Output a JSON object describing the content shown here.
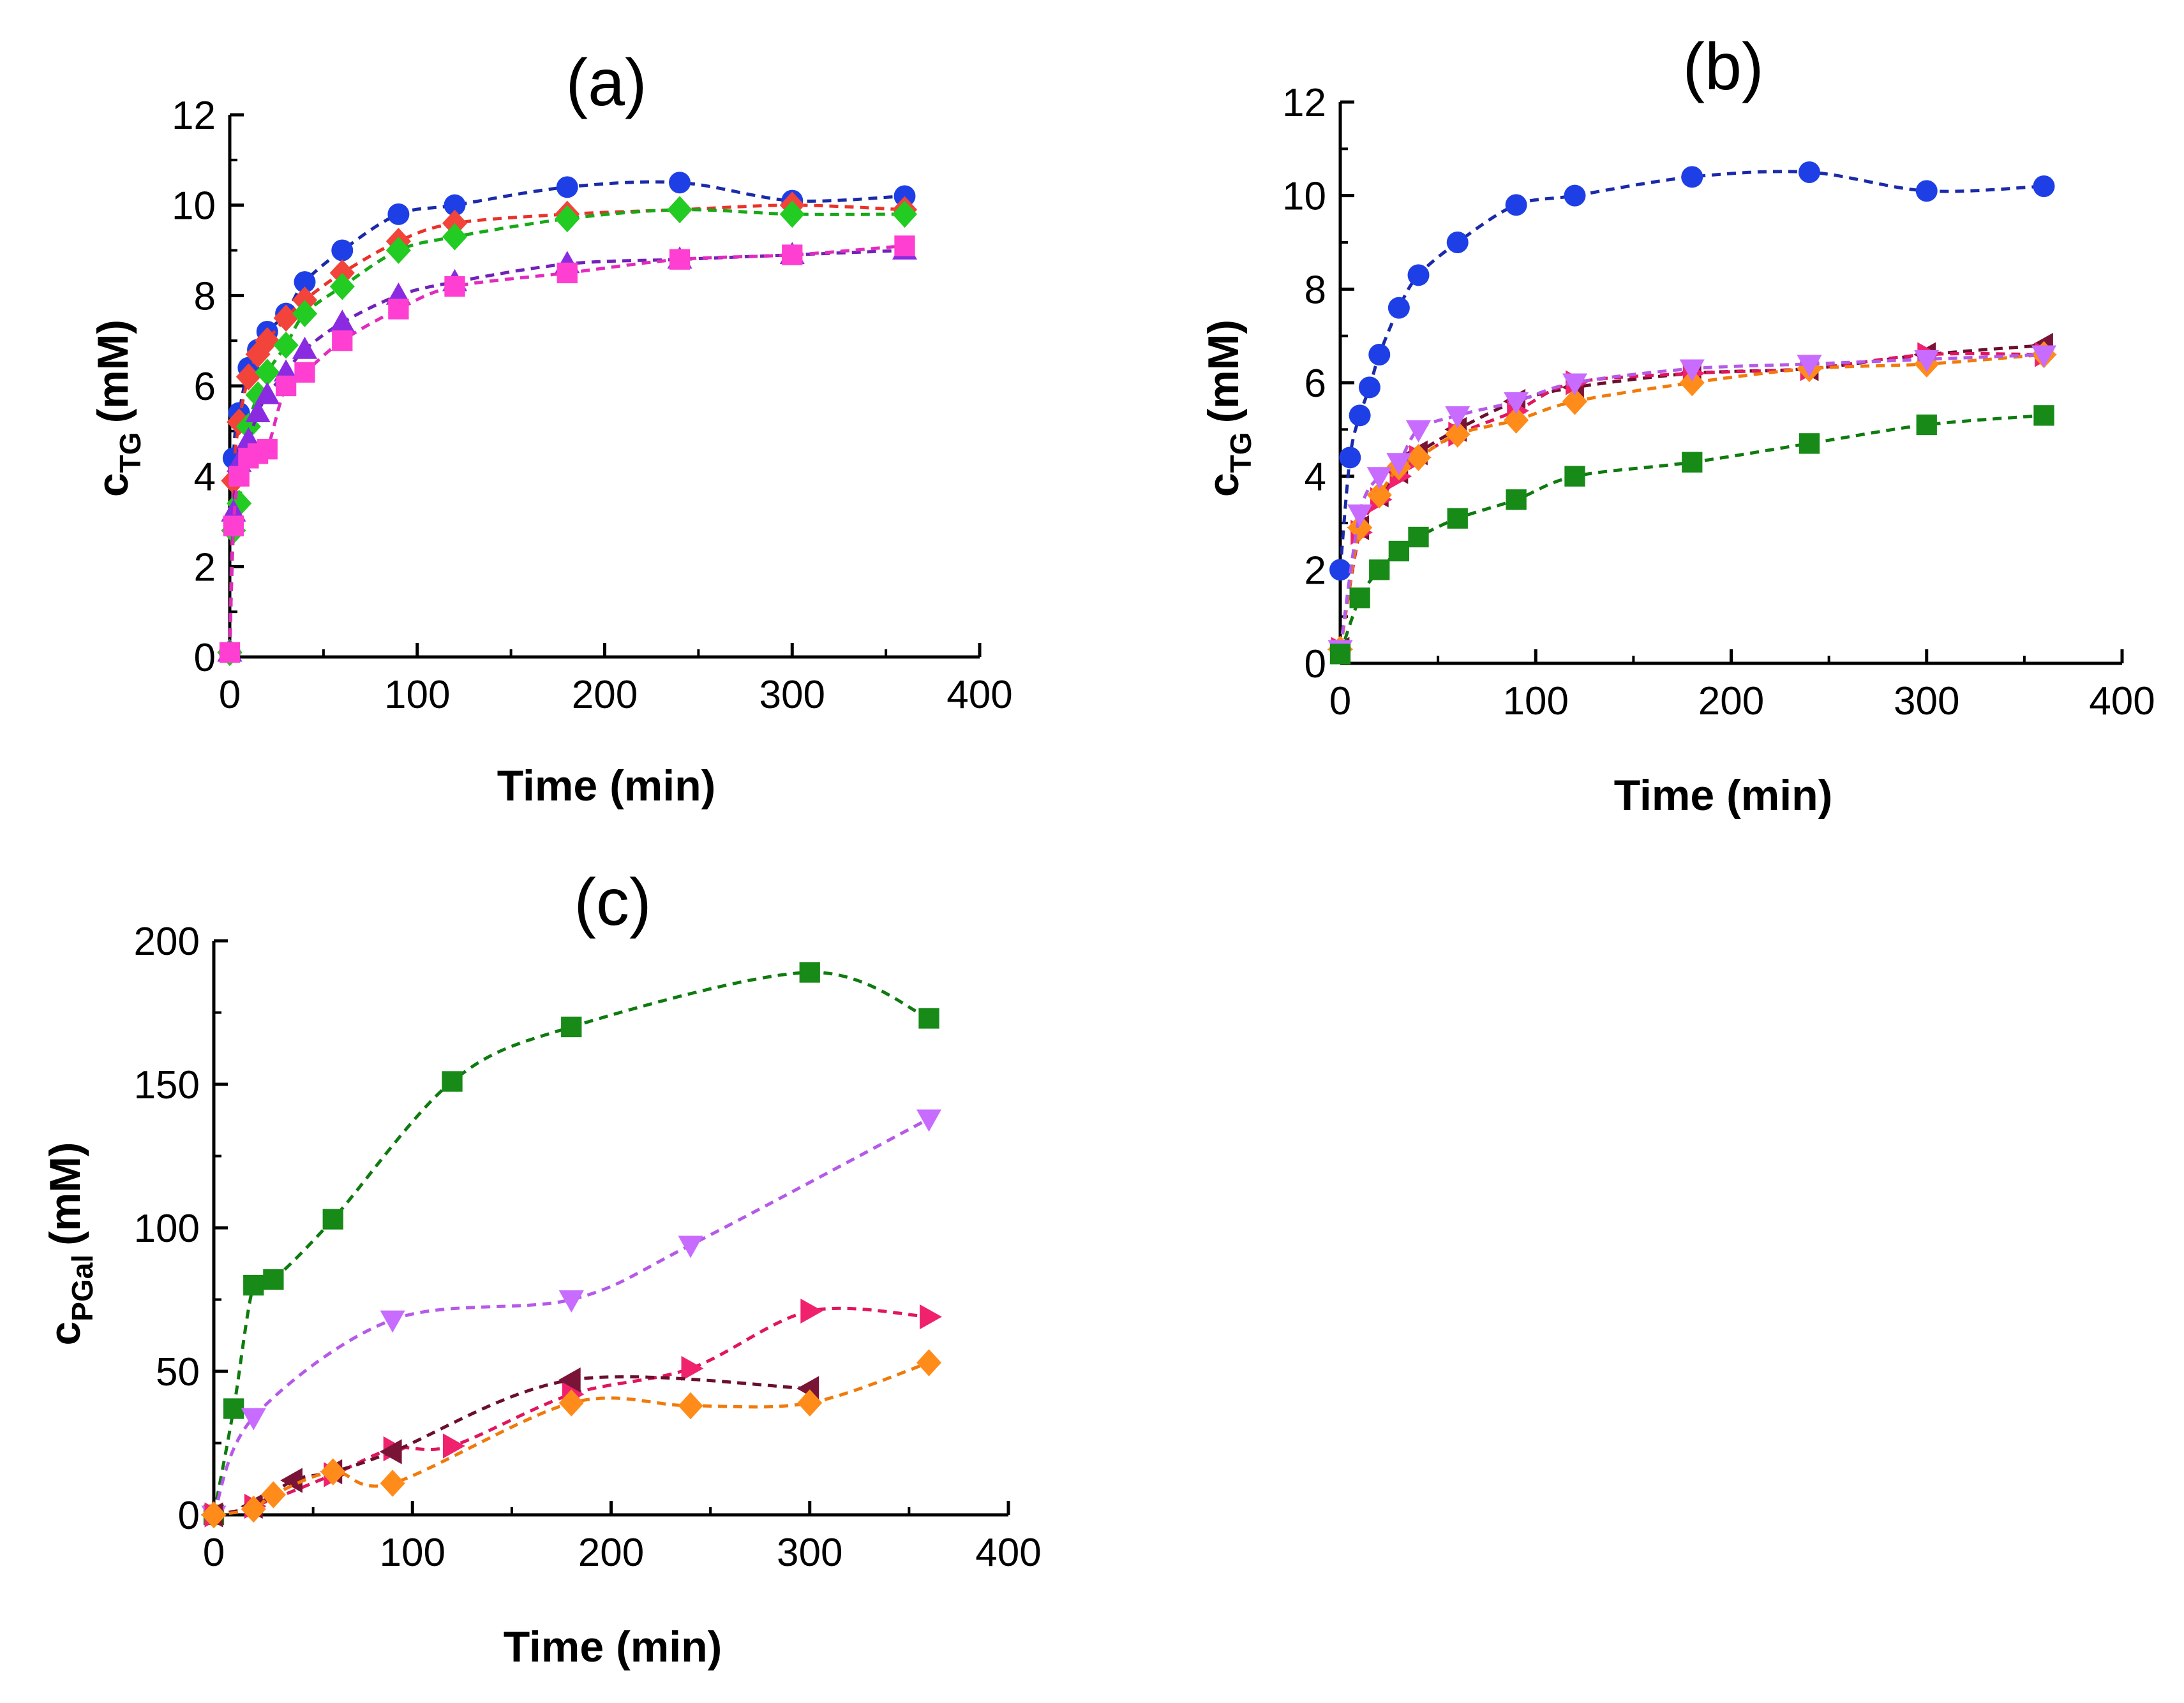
{
  "chart_data": [
    {
      "id": "a",
      "type": "line",
      "title": "(a)",
      "xlabel": "Time (min)",
      "ylabel_main": "c",
      "ylabel_sub": "TG",
      "ylabel_unit": "(mM)",
      "xlim": [
        0,
        400
      ],
      "ylim": [
        0,
        12
      ],
      "xticks": [
        0,
        100,
        200,
        300,
        400
      ],
      "yticks": [
        0,
        2,
        4,
        6,
        8,
        10,
        12
      ],
      "series": [
        {
          "name": "blue circles",
          "marker": "circle",
          "color": "#1f3fe6",
          "line_color": "#1a2aa8",
          "x": [
            0,
            2,
            5,
            10,
            15,
            20,
            30,
            40,
            60,
            90,
            120,
            180,
            240,
            300,
            360
          ],
          "y": [
            0.1,
            4.4,
            5.4,
            6.4,
            6.8,
            7.2,
            7.6,
            8.3,
            9.0,
            9.8,
            10.0,
            10.4,
            10.5,
            10.1,
            10.2
          ]
        },
        {
          "name": "red diamonds",
          "marker": "diamond",
          "color": "#f2443a",
          "line_color": "#e8322a",
          "x": [
            0,
            2,
            5,
            10,
            15,
            20,
            30,
            40,
            60,
            90,
            120,
            180,
            240,
            300,
            360
          ],
          "y": [
            0.1,
            3.9,
            5.2,
            6.2,
            6.7,
            7.0,
            7.5,
            7.9,
            8.5,
            9.2,
            9.6,
            9.8,
            9.9,
            10.0,
            9.9
          ]
        },
        {
          "name": "green diamonds",
          "marker": "diamond",
          "color": "#22cc22",
          "line_color": "#17a817",
          "x": [
            0,
            2,
            5,
            10,
            15,
            20,
            30,
            40,
            60,
            90,
            120,
            180,
            240,
            300,
            360
          ],
          "y": [
            0.1,
            2.8,
            3.4,
            5.1,
            5.8,
            6.3,
            6.9,
            7.6,
            8.2,
            9.0,
            9.3,
            9.7,
            9.9,
            9.8,
            9.8
          ]
        },
        {
          "name": "purple triangles",
          "marker": "triangle-up",
          "color": "#8a2be2",
          "line_color": "#7022b8",
          "x": [
            0,
            2,
            5,
            10,
            15,
            20,
            30,
            40,
            60,
            90,
            120,
            180,
            240,
            300,
            360
          ],
          "y": [
            0.1,
            3.2,
            4.3,
            4.8,
            5.4,
            5.8,
            6.3,
            6.8,
            7.4,
            8.0,
            8.3,
            8.7,
            8.8,
            8.9,
            9.0
          ]
        },
        {
          "name": "magenta squares",
          "marker": "square",
          "color": "#ff3fd2",
          "line_color": "#e22bbd",
          "x": [
            0,
            2,
            5,
            10,
            15,
            20,
            30,
            40,
            60,
            90,
            120,
            180,
            240,
            300,
            360
          ],
          "y": [
            0.1,
            2.9,
            4.0,
            4.4,
            4.5,
            4.6,
            6.0,
            6.3,
            7.0,
            7.7,
            8.2,
            8.5,
            8.8,
            8.9,
            9.1
          ]
        }
      ]
    },
    {
      "id": "b",
      "type": "line",
      "title": "(b)",
      "xlabel": "Time (min)",
      "ylabel_main": "c",
      "ylabel_sub": "TG",
      "ylabel_unit": "(mM)",
      "xlim": [
        0,
        400
      ],
      "ylim": [
        0,
        12
      ],
      "xticks": [
        0,
        100,
        200,
        300,
        400
      ],
      "yticks": [
        0,
        2,
        4,
        6,
        8,
        10,
        12
      ],
      "series": [
        {
          "name": "blue circles",
          "marker": "circle",
          "color": "#1f3fe6",
          "line_color": "#1a2aa8",
          "x": [
            0,
            5,
            10,
            15,
            20,
            30,
            40,
            60,
            90,
            120,
            180,
            240,
            300,
            360
          ],
          "y": [
            2.0,
            4.4,
            5.3,
            5.9,
            6.6,
            7.6,
            8.3,
            9.0,
            9.8,
            10.0,
            10.4,
            10.5,
            10.1,
            10.2
          ]
        },
        {
          "name": "dark red left triangles",
          "marker": "triangle-left",
          "color": "#7a1436",
          "line_color": "#6a0f2e",
          "x": [
            0,
            10,
            20,
            30,
            40,
            60,
            90,
            120,
            180,
            240,
            300,
            360
          ],
          "y": [
            0.3,
            2.9,
            3.6,
            4.1,
            4.5,
            5.0,
            5.6,
            5.9,
            6.2,
            6.3,
            6.6,
            6.8
          ]
        },
        {
          "name": "pink right triangles",
          "marker": "triangle-right",
          "color": "#f0226e",
          "line_color": "#e0155e",
          "x": [
            0,
            10,
            20,
            30,
            40,
            60,
            90,
            120,
            180,
            240,
            300,
            360
          ],
          "y": [
            0.3,
            2.8,
            3.5,
            4.0,
            4.4,
            4.9,
            5.4,
            6.0,
            6.2,
            6.3,
            6.6,
            6.6
          ]
        },
        {
          "name": "orange diamonds",
          "marker": "diamond",
          "color": "#ff8c1a",
          "line_color": "#f07a0a",
          "x": [
            0,
            10,
            20,
            30,
            40,
            60,
            90,
            120,
            180,
            240,
            300,
            360
          ],
          "y": [
            0.3,
            2.9,
            3.6,
            4.2,
            4.4,
            4.9,
            5.2,
            5.6,
            6.0,
            6.3,
            6.4,
            6.6
          ]
        },
        {
          "name": "violet down triangles",
          "marker": "triangle-down",
          "color": "#c86bff",
          "line_color": "#b55ae8",
          "x": [
            0,
            10,
            20,
            30,
            40,
            60,
            90,
            120,
            180,
            240,
            300,
            360
          ],
          "y": [
            0.3,
            3.2,
            4.0,
            4.3,
            5.0,
            5.3,
            5.6,
            6.0,
            6.3,
            6.4,
            6.5,
            6.6
          ]
        },
        {
          "name": "green squares",
          "marker": "square",
          "color": "#178a17",
          "line_color": "#0f7a0f",
          "x": [
            0,
            10,
            20,
            30,
            40,
            60,
            90,
            120,
            180,
            240,
            300,
            360
          ],
          "y": [
            0.2,
            1.4,
            2.0,
            2.4,
            2.7,
            3.1,
            3.5,
            4.0,
            4.3,
            4.7,
            5.1,
            5.3
          ]
        }
      ]
    },
    {
      "id": "c",
      "type": "line",
      "title": "(c)",
      "xlabel": "Time (min)",
      "ylabel_main": "c",
      "ylabel_sub": "PGal",
      "ylabel_unit": "(mM)",
      "xlim": [
        0,
        400
      ],
      "ylim": [
        0,
        200
      ],
      "xticks": [
        0,
        100,
        200,
        300,
        400
      ],
      "yticks": [
        0,
        50,
        100,
        150,
        200
      ],
      "series": [
        {
          "name": "green squares",
          "marker": "square",
          "color": "#178a17",
          "line_color": "#0f7a0f",
          "x": [
            0,
            10,
            20,
            30,
            60,
            120,
            180,
            300,
            360
          ],
          "y": [
            0,
            37,
            80,
            82,
            103,
            151,
            170,
            189,
            173
          ]
        },
        {
          "name": "violet down triangles",
          "marker": "triangle-down",
          "color": "#c86bff",
          "line_color": "#b55ae8",
          "x": [
            0,
            20,
            90,
            180,
            240,
            360
          ],
          "y": [
            0,
            34,
            68,
            75,
            94,
            138
          ]
        },
        {
          "name": "pink right triangles",
          "marker": "triangle-right",
          "color": "#f0226e",
          "line_color": "#e0155e",
          "x": [
            0,
            20,
            60,
            90,
            120,
            180,
            240,
            300,
            360
          ],
          "y": [
            0,
            3,
            14,
            23,
            24,
            42,
            51,
            71,
            69
          ]
        },
        {
          "name": "dark red left triangles",
          "marker": "triangle-left",
          "color": "#7a1436",
          "line_color": "#6a0f2e",
          "x": [
            0,
            20,
            40,
            60,
            90,
            180,
            300
          ],
          "y": [
            0,
            3,
            12,
            15,
            22,
            47,
            44
          ]
        },
        {
          "name": "orange diamonds",
          "marker": "diamond",
          "color": "#ff8c1a",
          "line_color": "#f07a0a",
          "x": [
            0,
            20,
            30,
            60,
            90,
            180,
            240,
            300,
            360
          ],
          "y": [
            0,
            2,
            7,
            15,
            11,
            39,
            38,
            39,
            53
          ]
        }
      ]
    }
  ]
}
